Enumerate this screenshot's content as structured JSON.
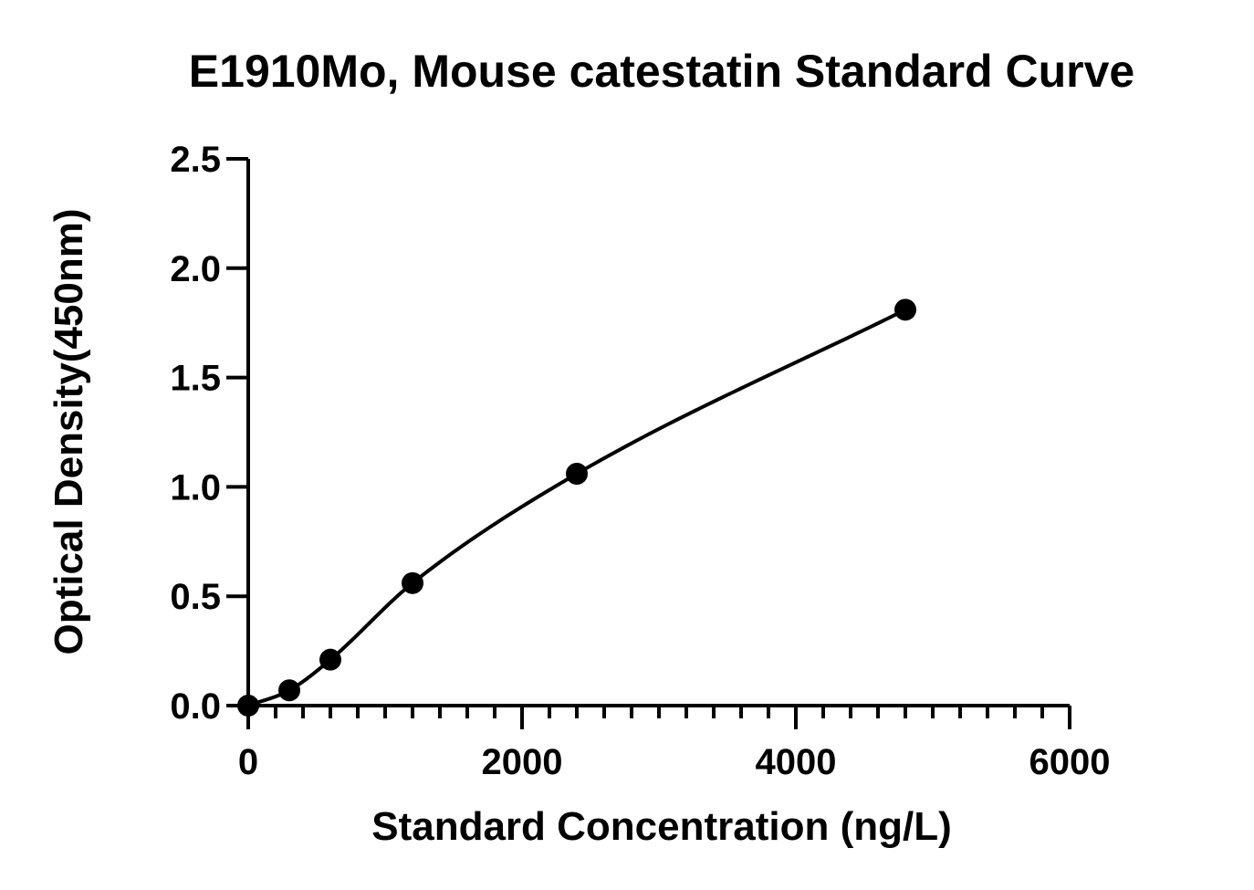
{
  "chart_data": {
    "type": "scatter",
    "title": "E1910Mo, Mouse catestatin Standard Curve",
    "xlabel": "Standard Concentration (ng/L)",
    "ylabel": "Optical Density(450nm)",
    "xlim": [
      0,
      6000
    ],
    "ylim": [
      0,
      2.5
    ],
    "x_ticks": [
      0,
      2000,
      4000,
      6000
    ],
    "x_tick_labels": [
      "0",
      "2000",
      "4000",
      "6000"
    ],
    "x_minor_step": 200,
    "y_ticks": [
      0,
      0.5,
      1.0,
      1.5,
      2.0,
      2.5
    ],
    "y_tick_labels": [
      "0.0",
      "0.5",
      "1.0",
      "1.5",
      "2.0",
      "2.5"
    ],
    "grid": false,
    "legend": "none",
    "series": [
      {
        "x": [
          0,
          300,
          600,
          1200,
          2400,
          4800
        ],
        "y": [
          0.0,
          0.07,
          0.21,
          0.56,
          1.06,
          1.81
        ],
        "marker": "circle",
        "fit_line": true,
        "color": "#000000"
      }
    ]
  }
}
